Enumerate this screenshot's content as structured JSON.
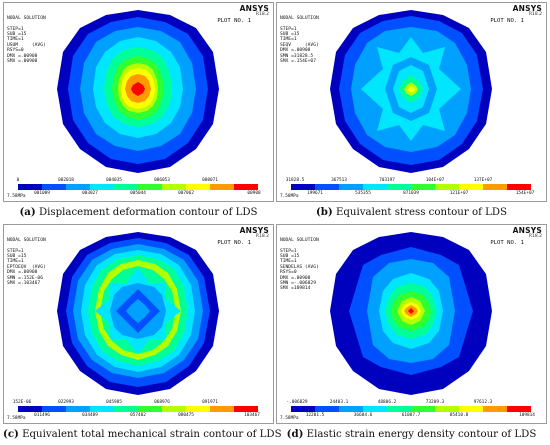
{
  "palette": [
    "#0000bf",
    "#0050ff",
    "#00a0ff",
    "#00e6ff",
    "#00ff99",
    "#30ff30",
    "#b4ff00",
    "#ffff00",
    "#ff9a00",
    "#ff0000"
  ],
  "panels": [
    {
      "header_lines": [
        "NODAL SOLUTION",
        "",
        "STEP=1",
        "SUB =15",
        "TIME=1",
        "USUM     (AVG)",
        "RSYS=0",
        "DMX =.00908",
        "SMX =.00908"
      ],
      "brand": "ANSYS",
      "version": "R18.2",
      "plot_no": "PLOT NO.   1",
      "ticks_top": [
        "0",
        "",
        "002018",
        "",
        "004035",
        "",
        "006053",
        "",
        "008071",
        ""
      ],
      "ticks_bot": [
        "",
        "001009",
        "",
        "003027",
        "",
        "005044",
        "",
        "007062",
        "",
        "00908"
      ],
      "unit": "7.58MPa",
      "caption_letter": "(a)",
      "caption_text": " Displacement deformation contour of LDS"
    },
    {
      "header_lines": [
        "NODAL SOLUTION",
        "",
        "STEP=1",
        "SUB =15",
        "TIME=1",
        "SEQV     (AVG)",
        "DMX =.00908",
        "SMN =31828.5",
        "SMX =.154E+07"
      ],
      "brand": "ANSYS",
      "version": "R18.2",
      "plot_no": "PLOT NO.   1",
      "ticks_top": [
        "31828.5",
        "",
        "367513",
        "",
        "703197",
        "",
        "104E+07",
        "",
        "137E+07",
        ""
      ],
      "ticks_bot": [
        "",
        "199671",
        "",
        "535355",
        "",
        "871039",
        "",
        "121E+07",
        "",
        "154E+07"
      ],
      "unit": "7.58MPa",
      "caption_letter": "(b)",
      "caption_text": " Equivalent stress contour of LDS"
    },
    {
      "header_lines": [
        "NODAL SOLUTION",
        "",
        "STEP=1",
        "SUB =15",
        "TIME=1",
        "EPTOEQV  (AVG)",
        "DMX =.00908",
        "SMN =.152E-06",
        "SMX =.103467"
      ],
      "brand": "ANSYS",
      "version": "R18.2",
      "plot_no": "PLOT NO.   1",
      "ticks_top": [
        "152E-06",
        "",
        "022993",
        "",
        "045985",
        "",
        "068976",
        "",
        "091971",
        ""
      ],
      "ticks_bot": [
        "",
        "011496",
        "",
        "034489",
        "",
        "057482",
        "",
        "080475",
        "",
        "103467"
      ],
      "unit": "7.58MPa",
      "caption_letter": "(c)",
      "caption_text": " Equivalent total mechanical strain contour of LDS"
    },
    {
      "header_lines": [
        "NODAL SOLUTION",
        "",
        "STEP=1",
        "SUB =15",
        "TIME=1",
        "SENDELAS (AVG)",
        "RSYS=0",
        "DMX =.00908",
        "SMN =-.006829",
        "SMX =109814"
      ],
      "brand": "ANSYS",
      "version": "R18.2",
      "plot_no": "PLOT NO.   1",
      "ticks_top": [
        "-.006829",
        "",
        "24403.1",
        "",
        "48806.2",
        "",
        "73209.3",
        "",
        "97612.3",
        ""
      ],
      "ticks_bot": [
        "",
        "12201.5",
        "",
        "36604.6",
        "",
        "61007.7",
        "",
        "85410.8",
        "",
        "109814"
      ],
      "unit": "7.58MPa",
      "caption_letter": "(d)",
      "caption_text": " Elastic strain energy density contour of LDS"
    }
  ]
}
